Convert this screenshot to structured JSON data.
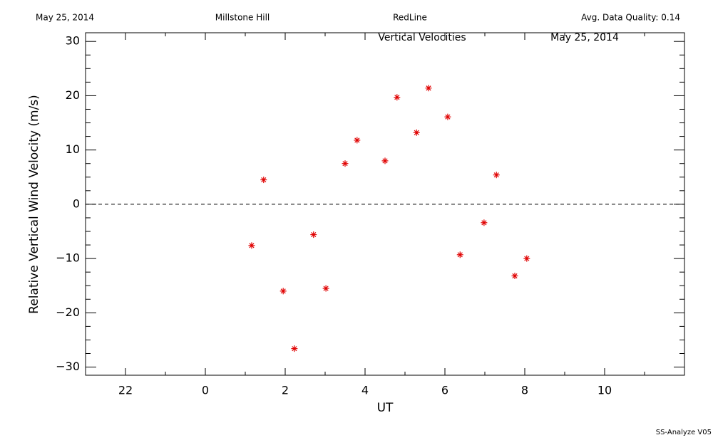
{
  "chart_data": {
    "type": "scatter",
    "header": [
      "May 25, 2014",
      "Millstone Hill",
      "RedLine",
      "Avg. Data Quality: 0.14"
    ],
    "title": "Vertical Velocities",
    "subtitle": "May 25, 2014",
    "footer": "SS-Analyze V05",
    "x_label": "UT",
    "y_label": "Relative Vertical Wind Velocity (m/s)",
    "xlim": [
      -3,
      12
    ],
    "ylim": [
      -31.5,
      31.6
    ],
    "xticks": [
      {
        "value": -2,
        "label": "22"
      },
      0,
      2,
      4,
      6,
      8,
      10
    ],
    "yticks": [
      {
        "value": -30,
        "label": "−30"
      },
      {
        "value": -20,
        "label": "−20"
      },
      {
        "value": -10,
        "label": "−10"
      },
      0,
      10,
      20,
      30
    ],
    "minor_ticks": {
      "x": 2,
      "y": 4
    },
    "hline": 0,
    "series": [
      {
        "name": "Vertical Velocities",
        "color": "#e00000",
        "x": [
          1.16,
          1.46,
          1.95,
          2.23,
          2.71,
          3.02,
          3.5,
          3.8,
          4.5,
          4.8,
          5.29,
          5.59,
          6.07,
          6.38,
          6.98,
          7.29,
          7.75,
          8.05
        ],
        "values": [
          -7.6,
          4.5,
          -16.0,
          -26.6,
          -5.6,
          -15.5,
          7.5,
          11.8,
          8.0,
          19.7,
          13.2,
          21.4,
          16.1,
          -9.3,
          -3.4,
          5.4,
          -13.2,
          -10.0
        ]
      }
    ]
  }
}
